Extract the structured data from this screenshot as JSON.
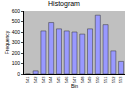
{
  "chart_data": {
    "type": "bar",
    "title": "Histogram",
    "x_label": "Bin",
    "y_label": "Frequency",
    "categories": [
      "541",
      "542",
      "543",
      "544",
      "545",
      "546",
      "547",
      "548",
      "549",
      "550",
      "551",
      "552",
      "553"
    ],
    "values": [
      0,
      30,
      410,
      490,
      430,
      410,
      400,
      380,
      430,
      560,
      470,
      220,
      120
    ],
    "color": "#9999ff",
    "ylim": [
      0,
      600
    ],
    "yticks": [
      0,
      100,
      200,
      300,
      400,
      500,
      600
    ],
    "grid": false
  }
}
